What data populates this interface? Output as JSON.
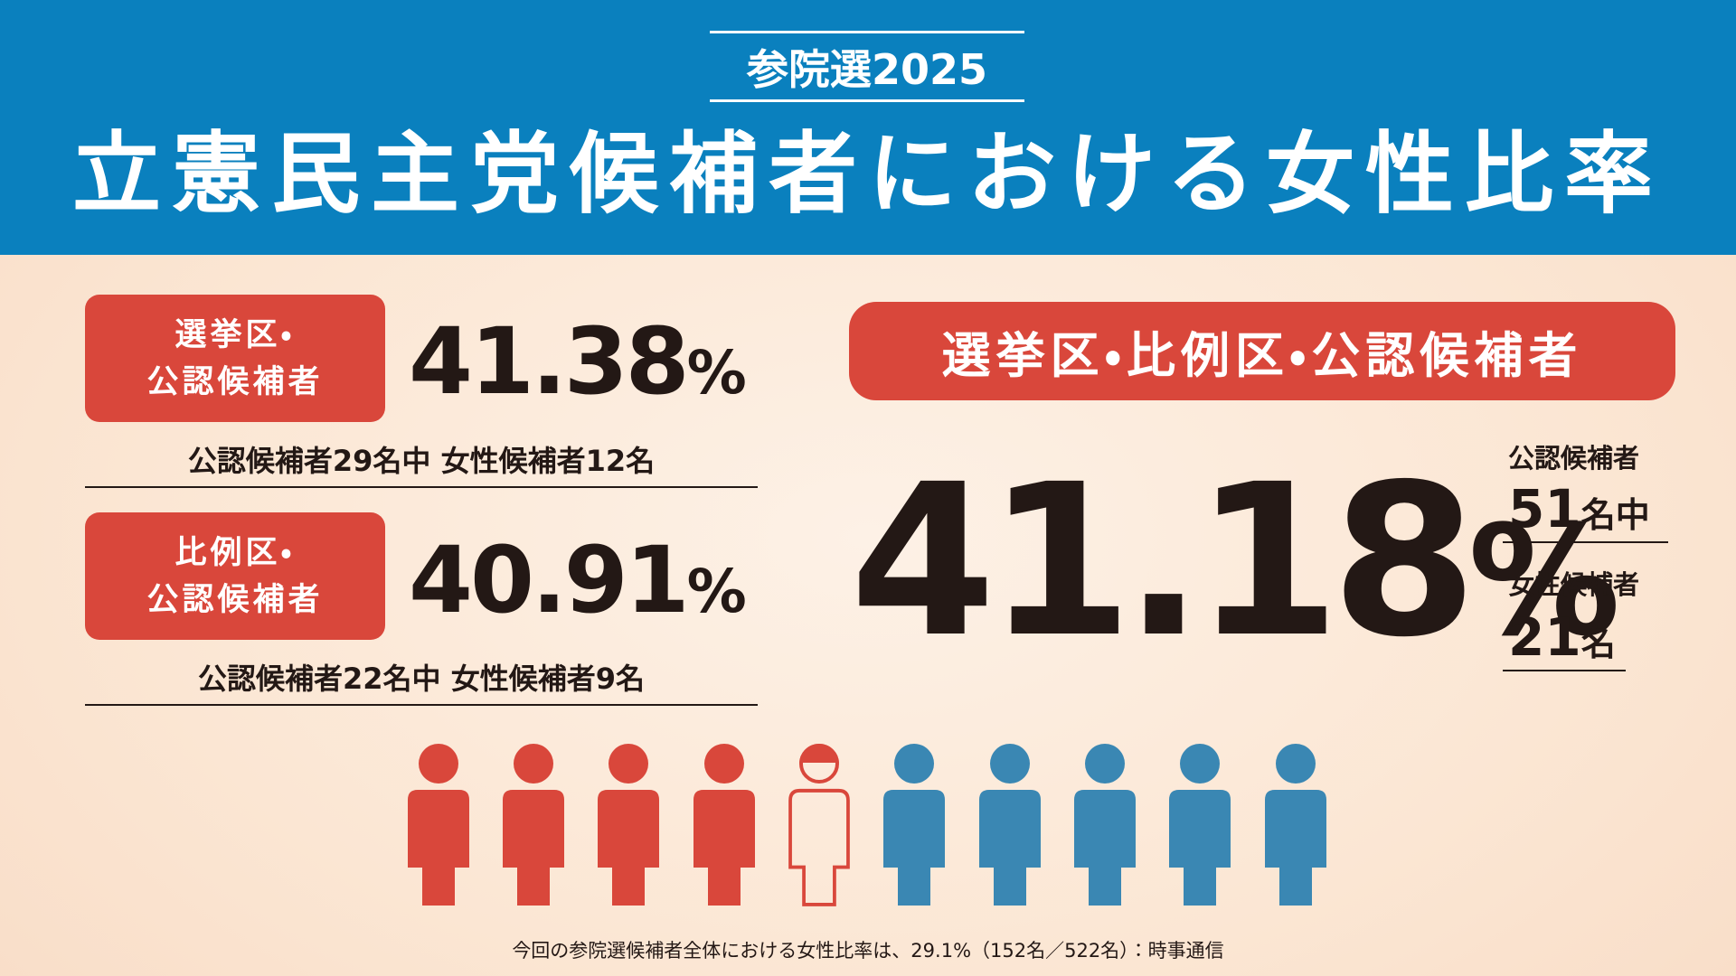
{
  "header": {
    "kicker": "参院選2025",
    "title": "立憲民主党候補者における女性比率"
  },
  "district": {
    "label_lines": [
      "選挙区・",
      "公認候補者"
    ],
    "rate": {
      "number": "41.38",
      "unit": "%"
    },
    "detail": "公認候補者29名中 女性候補者12名"
  },
  "proportional": {
    "label_lines": [
      "比例区・",
      "公認候補者"
    ],
    "rate": {
      "number": "40.91",
      "unit": "%"
    },
    "detail": "公認候補者22名中 女性候補者9名"
  },
  "total": {
    "label": "選挙区・比例区・公認候補者",
    "rate": {
      "number": "41.18",
      "unit": "%"
    },
    "candidates_label": "公認候補者",
    "candidates": {
      "number": "51",
      "unit": "名中"
    },
    "women_label": "女性候補者",
    "women": {
      "number": "21",
      "unit": "名"
    }
  },
  "footnote": "今回の参院選候補者全体における女性比率は、29.1%（152名／522名）：時事通信"
}
